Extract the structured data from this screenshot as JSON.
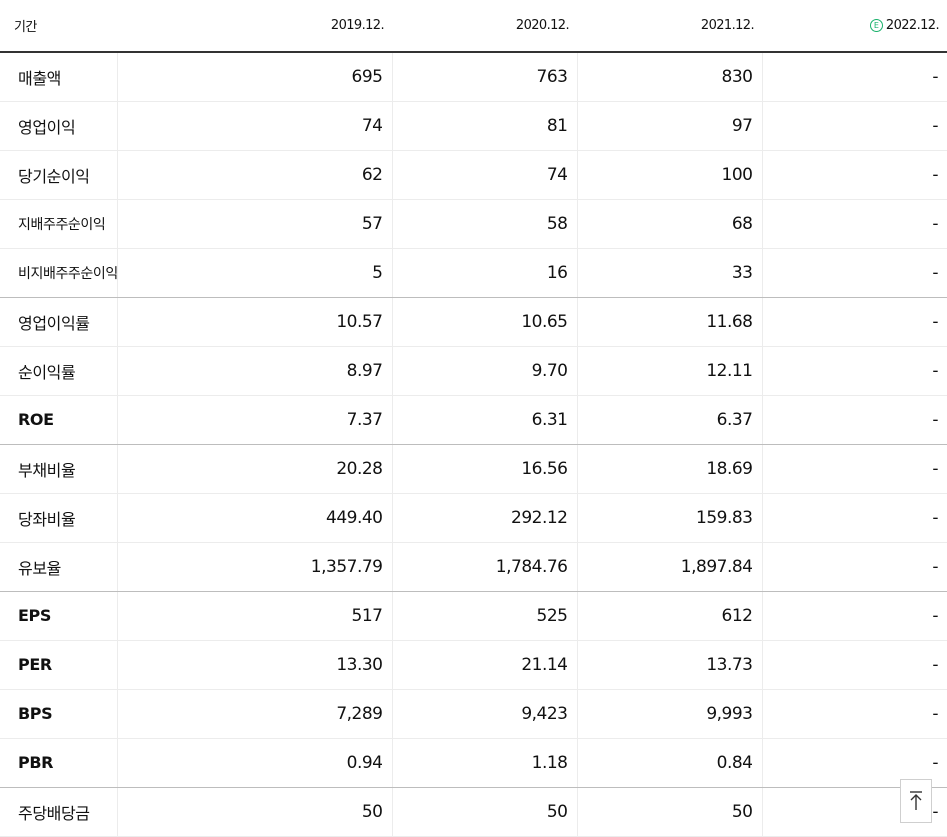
{
  "table": {
    "header": {
      "period_label": "기간",
      "years": [
        "2019.12.",
        "2020.12.",
        "2021.12."
      ],
      "estimate_year": "2022.12.",
      "estimate_badge": "E"
    },
    "rows": [
      {
        "label": "매출액",
        "values": [
          "695",
          "763",
          "830",
          "-"
        ]
      },
      {
        "label": "영업이익",
        "values": [
          "74",
          "81",
          "97",
          "-"
        ]
      },
      {
        "label": "당기순이익",
        "values": [
          "62",
          "74",
          "100",
          "-"
        ]
      },
      {
        "label": "지배주주순이익",
        "values": [
          "57",
          "58",
          "68",
          "-"
        ]
      },
      {
        "label": "비지배주주순이익",
        "values": [
          "5",
          "16",
          "33",
          "-"
        ]
      },
      {
        "label": "영업이익률",
        "values": [
          "10.57",
          "10.65",
          "11.68",
          "-"
        ]
      },
      {
        "label": "순이익률",
        "values": [
          "8.97",
          "9.70",
          "12.11",
          "-"
        ]
      },
      {
        "label": "ROE",
        "values": [
          "7.37",
          "6.31",
          "6.37",
          "-"
        ]
      },
      {
        "label": "부채비율",
        "values": [
          "20.28",
          "16.56",
          "18.69",
          "-"
        ]
      },
      {
        "label": "당좌비율",
        "values": [
          "449.40",
          "292.12",
          "159.83",
          "-"
        ]
      },
      {
        "label": "유보율",
        "values": [
          "1,357.79",
          "1,784.76",
          "1,897.84",
          "-"
        ]
      },
      {
        "label": "EPS",
        "values": [
          "517",
          "525",
          "612",
          "-"
        ]
      },
      {
        "label": "PER",
        "values": [
          "13.30",
          "21.14",
          "13.73",
          "-"
        ]
      },
      {
        "label": "BPS",
        "values": [
          "7,289",
          "9,423",
          "9,993",
          "-"
        ]
      },
      {
        "label": "PBR",
        "values": [
          "0.94",
          "1.18",
          "0.84",
          "-"
        ]
      },
      {
        "label": "주당배당금",
        "values": [
          "50",
          "50",
          "50",
          "-"
        ]
      }
    ]
  },
  "scroll_top_button": {
    "icon": "arrow-up-to-top-icon"
  },
  "colors": {
    "estimate_accent": "#19b06b",
    "header_rule": "#333333",
    "cell_border": "#ececec"
  }
}
